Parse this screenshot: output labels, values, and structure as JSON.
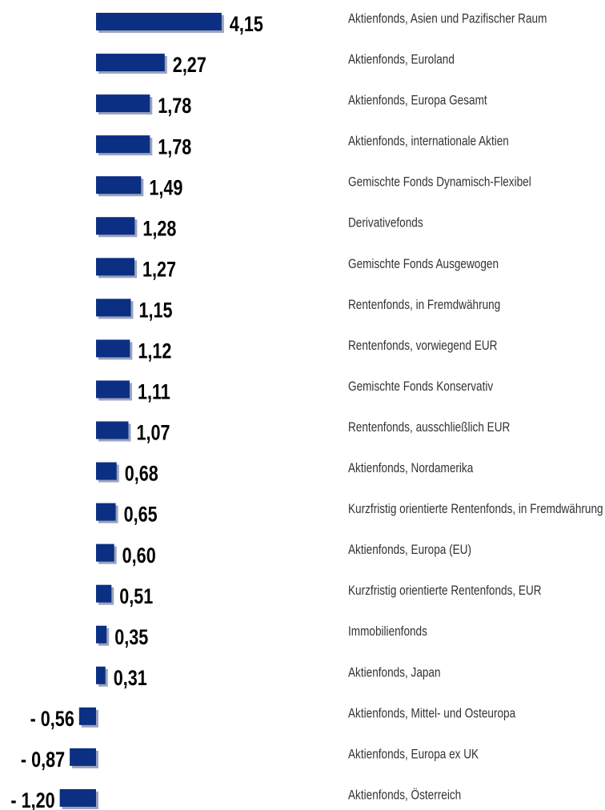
{
  "chart_data": {
    "type": "bar",
    "orientation": "horizontal",
    "color": "#0b2f83",
    "categories": [
      "Aktienfonds, Asien und Pazifischer Raum",
      "Aktienfonds, Euroland",
      "Aktienfonds, Europa Gesamt",
      "Aktienfonds, internationale Aktien",
      "Gemischte Fonds Dynamisch-Flexibel",
      "Derivativefonds",
      "Gemischte Fonds Ausgewogen",
      "Rentenfonds, in Fremdwährung",
      "Rentenfonds, vorwiegend EUR",
      "Gemischte Fonds Konservativ",
      "Rentenfonds, ausschließlich EUR",
      "Aktienfonds, Nordamerika",
      "Kurzfristig orientierte Rentenfonds, in Fremdwährung",
      "Aktienfonds, Europa (EU)",
      "Kurzfristig orientierte Rentenfonds,  EUR",
      "Immobilienfonds",
      "Aktienfonds, Japan",
      "Aktienfonds, Mittel- und Osteuropa",
      "Aktienfonds, Europa ex UK",
      "Aktienfonds, Österreich"
    ],
    "values": [
      4.15,
      2.27,
      1.78,
      1.78,
      1.49,
      1.28,
      1.27,
      1.15,
      1.12,
      1.11,
      1.07,
      0.68,
      0.65,
      0.6,
      0.51,
      0.35,
      0.31,
      -0.56,
      -0.87,
      -1.2
    ],
    "value_labels": [
      "4,15",
      "2,27",
      "1,78",
      "1,78",
      "1,49",
      "1,28",
      "1,27",
      "1,15",
      "1,12",
      "1,11",
      "1,07",
      "0,68",
      "0,65",
      "0,60",
      "0,51",
      "0,35",
      "0,31",
      "- 0,56",
      "- 0,87",
      "- 1,20"
    ]
  }
}
